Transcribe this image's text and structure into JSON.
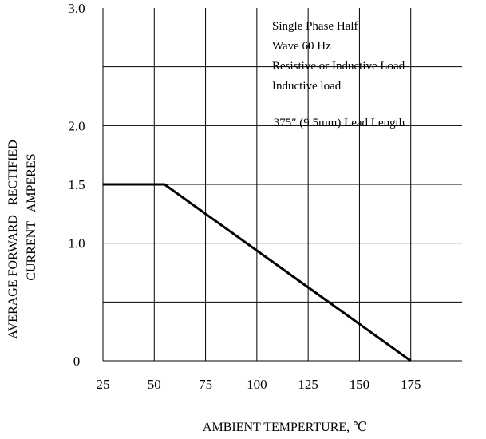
{
  "chart_data": {
    "type": "line",
    "title": "",
    "xlabel": "AMBIENT TEMPERTURE, ℃",
    "ylabel": [
      "AVERAGE FORWARD   RECTIFIED",
      "CURRENT   AMPERES"
    ],
    "x_ticks": [
      "25",
      "50",
      "75",
      "100",
      "125",
      "150",
      "175"
    ],
    "y_ticks": [
      {
        "value": 0,
        "label": "0"
      },
      {
        "value": 1.0,
        "label": "1.0"
      },
      {
        "value": 1.5,
        "label": "1.5"
      },
      {
        "value": 2.0,
        "label": "2.0"
      },
      {
        "value": 3.0,
        "label": "3.0"
      }
    ],
    "x_gridlines": [
      25,
      50,
      75,
      100,
      125,
      150,
      175
    ],
    "y_gridlines": [
      0.5,
      1.0,
      1.5,
      2.0,
      2.5
    ],
    "xlim": [
      25,
      200
    ],
    "ylim": [
      0,
      3.0
    ],
    "grid": true,
    "series": [
      {
        "x": [
          25,
          55,
          175
        ],
        "y": [
          1.5,
          1.5,
          0
        ]
      }
    ],
    "annotations": [
      "Single Phase Half",
      "Wave 60 Hz",
      "Resistive or Inductive Load",
      "Inductive load",
      ".375″ (9.5mm) Lead Length"
    ]
  }
}
